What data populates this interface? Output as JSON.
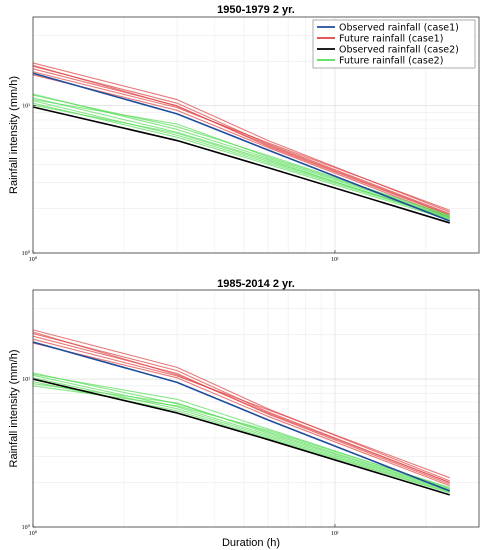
{
  "chart_data": [
    {
      "type": "line",
      "title": "1950-1979    2 yr.",
      "xlabel": "",
      "ylabel": "Rainfall intensity  (mm/h)",
      "xscale": "log",
      "yscale": "log",
      "xlim": [
        1,
        30
      ],
      "ylim": [
        1,
        40
      ],
      "xticks": [
        {
          "value": 1,
          "label": "10⁰"
        },
        {
          "value": 10,
          "label": "10¹"
        }
      ],
      "yticks": [
        {
          "value": 1,
          "label": "10⁰"
        },
        {
          "value": 10,
          "label": "10¹"
        }
      ],
      "grid": true,
      "legend_position": "top-right",
      "x": [
        1,
        3,
        6,
        24
      ],
      "series": [
        {
          "name": "Observed rainfall (case1)",
          "color": "#1f4e9c",
          "values": [
            16.6,
            8.8,
            5.0,
            1.65
          ]
        },
        {
          "name": "Future rainfall (case1)",
          "color": "#e04040",
          "group": "future1",
          "values": [
            19.5,
            11.0,
            5.8,
            1.9
          ]
        },
        {
          "name": "",
          "color": "#e04040",
          "group": "future1",
          "values": [
            18.5,
            10.4,
            5.5,
            1.85
          ]
        },
        {
          "name": "",
          "color": "#e04040",
          "group": "future1",
          "values": [
            17.8,
            10.0,
            5.3,
            1.8
          ]
        },
        {
          "name": "",
          "color": "#e04040",
          "group": "future1",
          "values": [
            17.0,
            9.7,
            5.6,
            1.95
          ]
        },
        {
          "name": "",
          "color": "#e04040",
          "group": "future1",
          "values": [
            16.2,
            9.3,
            5.2,
            1.75
          ]
        },
        {
          "name": "",
          "color": "#e04040",
          "group": "future1",
          "values": [
            18.8,
            9.9,
            5.4,
            1.82
          ]
        },
        {
          "name": "Observed rainfall (case2)",
          "color": "#000000",
          "values": [
            9.8,
            5.8,
            3.8,
            1.6
          ]
        },
        {
          "name": "Future rainfall (case2)",
          "color": "#55dd55",
          "group": "future2",
          "values": [
            12.0,
            6.9,
            4.4,
            1.75
          ]
        },
        {
          "name": "",
          "color": "#55dd55",
          "group": "future2",
          "values": [
            11.3,
            6.6,
            4.3,
            1.7
          ]
        },
        {
          "name": "",
          "color": "#55dd55",
          "group": "future2",
          "values": [
            10.8,
            6.3,
            4.1,
            1.72
          ]
        },
        {
          "name": "",
          "color": "#55dd55",
          "group": "future2",
          "values": [
            10.4,
            6.1,
            4.0,
            1.68
          ]
        },
        {
          "name": "",
          "color": "#55dd55",
          "group": "future2",
          "values": [
            11.8,
            7.2,
            4.6,
            1.8
          ]
        },
        {
          "name": "",
          "color": "#55dd55",
          "group": "future2",
          "values": [
            10.1,
            6.5,
            4.2,
            1.74
          ]
        },
        {
          "name": "",
          "color": "#55dd55",
          "group": "future2",
          "values": [
            11.0,
            7.5,
            4.5,
            1.78
          ]
        }
      ]
    },
    {
      "type": "line",
      "title": "1985-2014    2 yr.",
      "xlabel": "Duration (h)",
      "ylabel": "Rainfall intensity  (mm/h)",
      "xscale": "log",
      "yscale": "log",
      "xlim": [
        1,
        30
      ],
      "ylim": [
        1,
        40
      ],
      "xticks": [
        {
          "value": 1,
          "label": "10⁰"
        },
        {
          "value": 10,
          "label": "10¹"
        }
      ],
      "yticks": [
        {
          "value": 1,
          "label": "10⁰"
        },
        {
          "value": 10,
          "label": "10¹"
        }
      ],
      "grid": true,
      "legend_position": "none",
      "x": [
        1,
        3,
        6,
        24
      ],
      "series": [
        {
          "name": "Observed rainfall (case1)",
          "color": "#1f4e9c",
          "values": [
            17.8,
            9.5,
            5.3,
            1.75
          ]
        },
        {
          "name": "Future rainfall (case1)",
          "color": "#e04040",
          "group": "future1",
          "values": [
            21.5,
            12.0,
            6.3,
            2.05
          ]
        },
        {
          "name": "",
          "color": "#e04040",
          "group": "future1",
          "values": [
            20.3,
            11.4,
            6.0,
            2.0
          ]
        },
        {
          "name": "",
          "color": "#e04040",
          "group": "future1",
          "values": [
            19.5,
            10.9,
            5.8,
            1.95
          ]
        },
        {
          "name": "",
          "color": "#e04040",
          "group": "future1",
          "values": [
            18.6,
            10.5,
            6.2,
            2.15
          ]
        },
        {
          "name": "",
          "color": "#e04040",
          "group": "future1",
          "values": [
            17.5,
            10.2,
            5.6,
            1.9
          ]
        },
        {
          "name": "",
          "color": "#e04040",
          "group": "future1",
          "values": [
            20.8,
            10.7,
            5.9,
            2.0
          ]
        },
        {
          "name": "Observed rainfall (case2)",
          "color": "#000000",
          "values": [
            10.0,
            5.9,
            3.9,
            1.65
          ]
        },
        {
          "name": "Future rainfall (case2)",
          "color": "#55dd55",
          "group": "future2",
          "values": [
            11.0,
            6.8,
            4.4,
            1.8
          ]
        },
        {
          "name": "",
          "color": "#55dd55",
          "group": "future2",
          "values": [
            10.6,
            6.5,
            4.2,
            1.75
          ]
        },
        {
          "name": "",
          "color": "#55dd55",
          "group": "future2",
          "values": [
            10.2,
            6.3,
            4.1,
            1.72
          ]
        },
        {
          "name": "",
          "color": "#55dd55",
          "group": "future2",
          "values": [
            9.6,
            6.1,
            4.0,
            1.7
          ]
        },
        {
          "name": "",
          "color": "#55dd55",
          "group": "future2",
          "values": [
            9.0,
            6.6,
            4.5,
            1.85
          ]
        },
        {
          "name": "",
          "color": "#55dd55",
          "group": "future2",
          "values": [
            10.8,
            7.3,
            4.6,
            1.82
          ]
        },
        {
          "name": "",
          "color": "#55dd55",
          "group": "future2",
          "values": [
            9.3,
            6.9,
            4.3,
            1.78
          ]
        }
      ]
    }
  ]
}
